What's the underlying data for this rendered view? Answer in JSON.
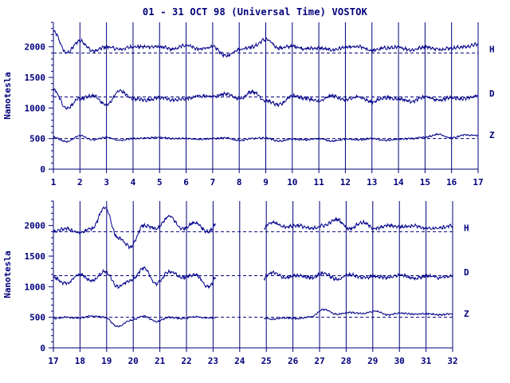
{
  "title": "01 - 31 OCT 98 (Universal Time) VOSTOK",
  "chart_data": [
    {
      "type": "line",
      "panel": "days 1-16",
      "ylabel": "Nanotesla",
      "x_ticks": [
        "1",
        "2",
        "3",
        "4",
        "5",
        "6",
        "7",
        "8",
        "9",
        "10",
        "11",
        "12",
        "13",
        "14",
        "15",
        "16",
        "17"
      ],
      "xlim": [
        1,
        17
      ],
      "y_ticks": [
        "0",
        "500",
        "1000",
        "1500",
        "2000"
      ],
      "ylim": [
        0,
        2400
      ],
      "grid": "vertical lines at day boundaries",
      "series": [
        {
          "name": "H",
          "baseline": 1900,
          "values": [
            2250,
            1900,
            2100,
            1930,
            2000,
            1960,
            2000,
            2000,
            2000,
            1960,
            2030,
            1960,
            2000,
            1850,
            1960,
            2000,
            2120,
            1980,
            2010,
            1970,
            1980,
            1950,
            1990,
            2000,
            1940,
            1980,
            1990,
            1950,
            2000,
            1960,
            1980,
            2000,
            2040
          ]
        },
        {
          "name": "D",
          "baseline": 1180,
          "values": [
            1300,
            1000,
            1150,
            1200,
            1050,
            1280,
            1150,
            1130,
            1170,
            1130,
            1150,
            1200,
            1190,
            1230,
            1150,
            1270,
            1120,
            1050,
            1200,
            1160,
            1110,
            1200,
            1130,
            1180,
            1100,
            1170,
            1150,
            1110,
            1180,
            1130,
            1170,
            1150,
            1200
          ]
        },
        {
          "name": "Z",
          "baseline": 500,
          "values": [
            520,
            450,
            550,
            480,
            520,
            470,
            500,
            510,
            520,
            500,
            500,
            490,
            500,
            510,
            470,
            500,
            510,
            460,
            490,
            480,
            500,
            460,
            490,
            480,
            500,
            470,
            490,
            500,
            520,
            570,
            510,
            560,
            550
          ]
        }
      ]
    },
    {
      "type": "line",
      "panel": "days 17-31",
      "ylabel": "Nanotesla",
      "x_ticks": [
        "17",
        "18",
        "19",
        "20",
        "21",
        "22",
        "23",
        "24",
        "25",
        "26",
        "27",
        "28",
        "29",
        "30",
        "31",
        "32"
      ],
      "xlim": [
        17,
        32
      ],
      "y_ticks": [
        "0",
        "500",
        "1000",
        "1500",
        "2000"
      ],
      "ylim": [
        0,
        2400
      ],
      "grid": "vertical lines at day boundaries",
      "data_gap": [
        23.1,
        24.9
      ],
      "series": [
        {
          "name": "H",
          "baseline": 1900,
          "values": [
            1900,
            1950,
            1880,
            1950,
            2300,
            1800,
            1650,
            2000,
            1950,
            2150,
            1950,
            2050,
            1900,
            2100,
            2000,
            1920,
            1900,
            2050,
            1980,
            2000,
            1950,
            2000,
            2100,
            1950,
            2050,
            1950,
            2000,
            1980,
            2000,
            1950,
            1960,
            2000
          ]
        },
        {
          "name": "D",
          "baseline": 1180,
          "values": [
            1150,
            1050,
            1200,
            1100,
            1250,
            1000,
            1100,
            1300,
            1050,
            1250,
            1150,
            1200,
            1000,
            1250,
            1200,
            1150,
            1100,
            1230,
            1150,
            1180,
            1150,
            1220,
            1120,
            1200,
            1150,
            1170,
            1150,
            1200,
            1130,
            1180,
            1150,
            1170
          ]
        },
        {
          "name": "Z",
          "baseline": 500,
          "values": [
            480,
            500,
            490,
            520,
            500,
            350,
            450,
            520,
            430,
            500,
            480,
            510,
            490,
            500,
            380,
            490,
            500,
            470,
            490,
            480,
            510,
            630,
            550,
            580,
            560,
            600,
            540,
            570,
            550,
            560,
            540,
            560
          ]
        }
      ]
    }
  ]
}
